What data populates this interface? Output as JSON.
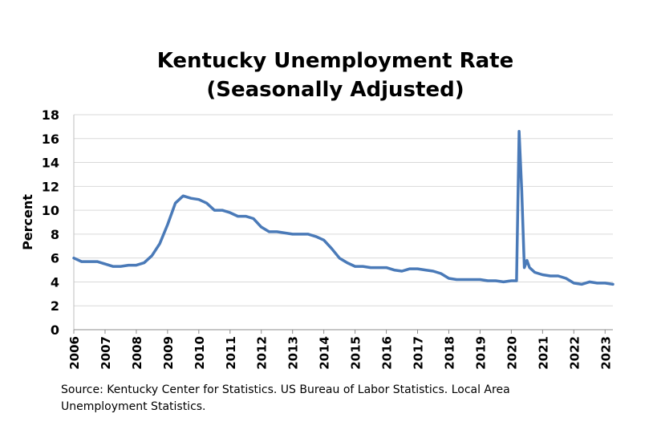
{
  "chart_data": {
    "type": "line",
    "title": "Kentucky Unemployment Rate",
    "subtitle": "(Seasonally Adjusted)",
    "ylabel": "Percent",
    "xlabel": "",
    "ylim": [
      0,
      18
    ],
    "yticks": [
      0,
      2,
      4,
      6,
      8,
      10,
      12,
      14,
      16,
      18
    ],
    "xticks": [
      "2006",
      "2007",
      "2008",
      "2009",
      "2010",
      "2011",
      "2012",
      "2013",
      "2014",
      "2015",
      "2016",
      "2017",
      "2018",
      "2019",
      "2020",
      "2021",
      "2022",
      "2023"
    ],
    "xlim": [
      "2006-01",
      "2023-04"
    ],
    "grid": true,
    "legend": "none",
    "color": "#4a7ab8",
    "series": [
      {
        "points": [
          [
            "2006-01",
            6.0
          ],
          [
            "2006-04",
            5.7
          ],
          [
            "2006-07",
            5.7
          ],
          [
            "2006-10",
            5.7
          ],
          [
            "2007-01",
            5.5
          ],
          [
            "2007-04",
            5.3
          ],
          [
            "2007-07",
            5.3
          ],
          [
            "2007-10",
            5.4
          ],
          [
            "2008-01",
            5.4
          ],
          [
            "2008-04",
            5.6
          ],
          [
            "2008-07",
            6.2
          ],
          [
            "2008-10",
            7.2
          ],
          [
            "2009-01",
            8.8
          ],
          [
            "2009-04",
            10.6
          ],
          [
            "2009-07",
            11.2
          ],
          [
            "2009-10",
            11.0
          ],
          [
            "2010-01",
            10.9
          ],
          [
            "2010-04",
            10.6
          ],
          [
            "2010-07",
            10.0
          ],
          [
            "2010-10",
            10.0
          ],
          [
            "2011-01",
            9.8
          ],
          [
            "2011-04",
            9.5
          ],
          [
            "2011-07",
            9.5
          ],
          [
            "2011-10",
            9.3
          ],
          [
            "2012-01",
            8.6
          ],
          [
            "2012-04",
            8.2
          ],
          [
            "2012-07",
            8.2
          ],
          [
            "2012-10",
            8.1
          ],
          [
            "2013-01",
            8.0
          ],
          [
            "2013-04",
            8.0
          ],
          [
            "2013-07",
            8.0
          ],
          [
            "2013-10",
            7.8
          ],
          [
            "2014-01",
            7.5
          ],
          [
            "2014-04",
            6.8
          ],
          [
            "2014-07",
            6.0
          ],
          [
            "2014-10",
            5.6
          ],
          [
            "2015-01",
            5.3
          ],
          [
            "2015-04",
            5.3
          ],
          [
            "2015-07",
            5.2
          ],
          [
            "2015-10",
            5.2
          ],
          [
            "2016-01",
            5.2
          ],
          [
            "2016-04",
            5.0
          ],
          [
            "2016-07",
            4.9
          ],
          [
            "2016-10",
            5.1
          ],
          [
            "2017-01",
            5.1
          ],
          [
            "2017-04",
            5.0
          ],
          [
            "2017-07",
            4.9
          ],
          [
            "2017-10",
            4.7
          ],
          [
            "2018-01",
            4.3
          ],
          [
            "2018-04",
            4.2
          ],
          [
            "2018-07",
            4.2
          ],
          [
            "2018-10",
            4.2
          ],
          [
            "2019-01",
            4.2
          ],
          [
            "2019-04",
            4.1
          ],
          [
            "2019-07",
            4.1
          ],
          [
            "2019-10",
            4.0
          ],
          [
            "2020-01",
            4.1
          ],
          [
            "2020-03",
            4.1
          ],
          [
            "2020-04",
            16.6
          ],
          [
            "2020-05",
            11.6
          ],
          [
            "2020-06",
            5.2
          ],
          [
            "2020-07",
            5.8
          ],
          [
            "2020-08",
            5.2
          ],
          [
            "2020-10",
            4.8
          ],
          [
            "2021-01",
            4.6
          ],
          [
            "2021-04",
            4.5
          ],
          [
            "2021-07",
            4.5
          ],
          [
            "2021-10",
            4.3
          ],
          [
            "2022-01",
            3.9
          ],
          [
            "2022-04",
            3.8
          ],
          [
            "2022-07",
            4.0
          ],
          [
            "2022-10",
            3.9
          ],
          [
            "2023-01",
            3.9
          ],
          [
            "2023-04",
            3.8
          ]
        ]
      }
    ]
  },
  "source_note": "Source: Kentucky Center for Statistics. US Bureau of Labor Statistics. Local Area Unemployment Statistics."
}
